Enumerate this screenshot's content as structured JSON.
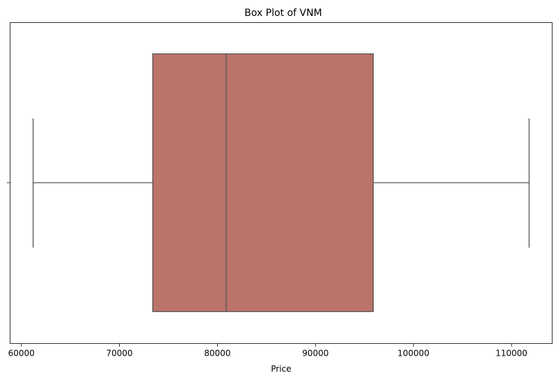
{
  "chart_data": {
    "type": "box",
    "title": "Box Plot of VNM",
    "xlabel": "Price",
    "ylabel": "",
    "orientation": "horizontal",
    "xlim": [
      58850,
      114150
    ],
    "xticks": [
      60000,
      70000,
      80000,
      90000,
      100000,
      110000
    ],
    "xtick_labels": [
      "60000",
      "70000",
      "80000",
      "90000",
      "100000",
      "110000"
    ],
    "grid": false,
    "box": {
      "whisker_low": 61200,
      "q1": 73400,
      "median": 80900,
      "q3": 95900,
      "whisker_high": 111800
    },
    "colors": {
      "box_fill": "#bb736a",
      "lines": "#555555"
    }
  }
}
